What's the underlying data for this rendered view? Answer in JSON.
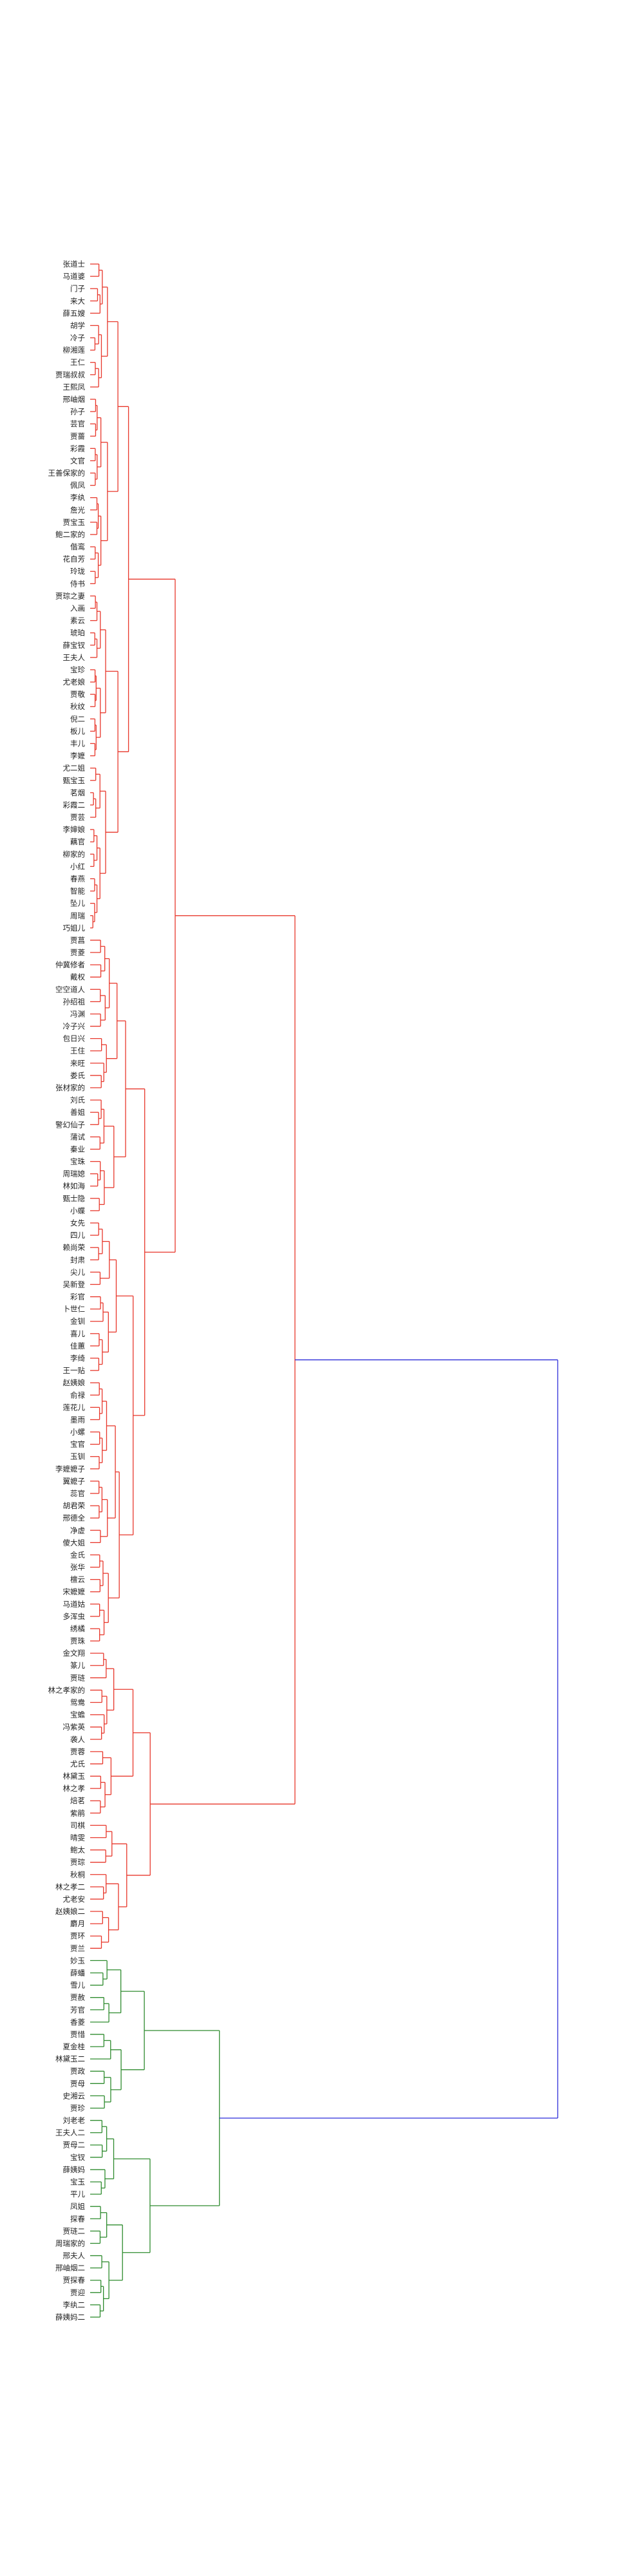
{
  "chart_data": {
    "type": "dendrogram",
    "orientation": "right",
    "colors": {
      "cluster_a": "#e8372b",
      "cluster_b": "#2e8b2e",
      "root": "#2b2bd9"
    },
    "leaves": [
      "张道士",
      "马道婆",
      "门子",
      "来大",
      "薛五嫂",
      "胡学",
      "冷子",
      "柳湘莲",
      "王仁",
      "贾瑞叔叔",
      "王熙凤",
      "邢岫烟",
      "孙子",
      "芸官",
      "贾蔷",
      "彩霞",
      "文官",
      "王善保家的",
      "佩凤",
      "李纨",
      "詹光",
      "贾宝玉",
      "鲍二家的",
      "偕鸾",
      "花自芳",
      "玲珑",
      "侍书",
      "贾琮之妻",
      "入画",
      "素云",
      "琥珀",
      "薛宝钗",
      "王夫人",
      "宝珍",
      "尤老娘",
      "贾敬",
      "秋纹",
      "倪二",
      "板儿",
      "丰儿",
      "李嬷",
      "尤二姐",
      "甄宝玉",
      "茗烟",
      "彩霞二",
      "贾芸",
      "李婶娘",
      "藕官",
      "柳家的",
      "小红",
      "春燕",
      "智能",
      "坠儿",
      "周瑞",
      "巧姐儿",
      "贾菖",
      "贾菱",
      "仲冀修者",
      "戴权",
      "空空道人",
      "孙绍祖",
      "冯渊",
      "冷子兴",
      "包日兴",
      "王住",
      "来旺",
      "娄氏",
      "张材家的",
      "刘氏",
      "善姐",
      "警幻仙子",
      "蒲试",
      "秦业",
      "宝珠",
      "周瑞媳",
      "林如海",
      "甄士隐",
      "小蝶",
      "女先",
      "四儿",
      "赖尚荣",
      "封肃",
      "尖儿",
      "吴新登",
      "彩官",
      "卜世仁",
      "金钏",
      "喜儿",
      "佳蕙",
      "李绮",
      "王一贴",
      "赵姨娘",
      "俞禄",
      "莲花儿",
      "墨雨",
      "小螺",
      "宝官",
      "玉钏",
      "李嬷嬷子",
      "翼嬷子",
      "蕊官",
      "胡君荣",
      "邢德全",
      "净虚",
      "傻大姐",
      "金氏",
      "张华",
      "檀云",
      "宋嬷嬷",
      "马道姑",
      "多浑虫",
      "绣橘",
      "贾珠",
      "金文翔",
      "篆儿",
      "贾琏",
      "林之孝家的",
      "鸳鸯",
      "宝蟾",
      "冯紫英",
      "袭人",
      "贾蓉",
      "尤氏",
      "林黛玉",
      "林之孝",
      "焙茗",
      "紫鹃",
      "司棋",
      "晴雯",
      "鲍太",
      "贾琮",
      "秋桐",
      "林之孝二",
      "尤老安",
      "赵姨娘二",
      "麝月",
      "贾环",
      "贾兰",
      "妙玉",
      "薛蟠",
      "雪儿",
      "贾赦",
      "芳官",
      "香菱",
      "贾惜",
      "夏金桂",
      "林黛玉二",
      "贾政",
      "贾母",
      "史湘云",
      "贾珍",
      "刘老老",
      "王夫人二",
      "贾母二",
      "宝钗",
      "薛姨妈",
      "宝玉",
      "平儿",
      "凤姐",
      "探春",
      "贾琏二",
      "周瑞家的",
      "邢夫人",
      "邢岫烟二",
      "贾探春",
      "贾迎",
      "李纨二",
      "薛姨妈二"
    ],
    "split_index": 138
  }
}
